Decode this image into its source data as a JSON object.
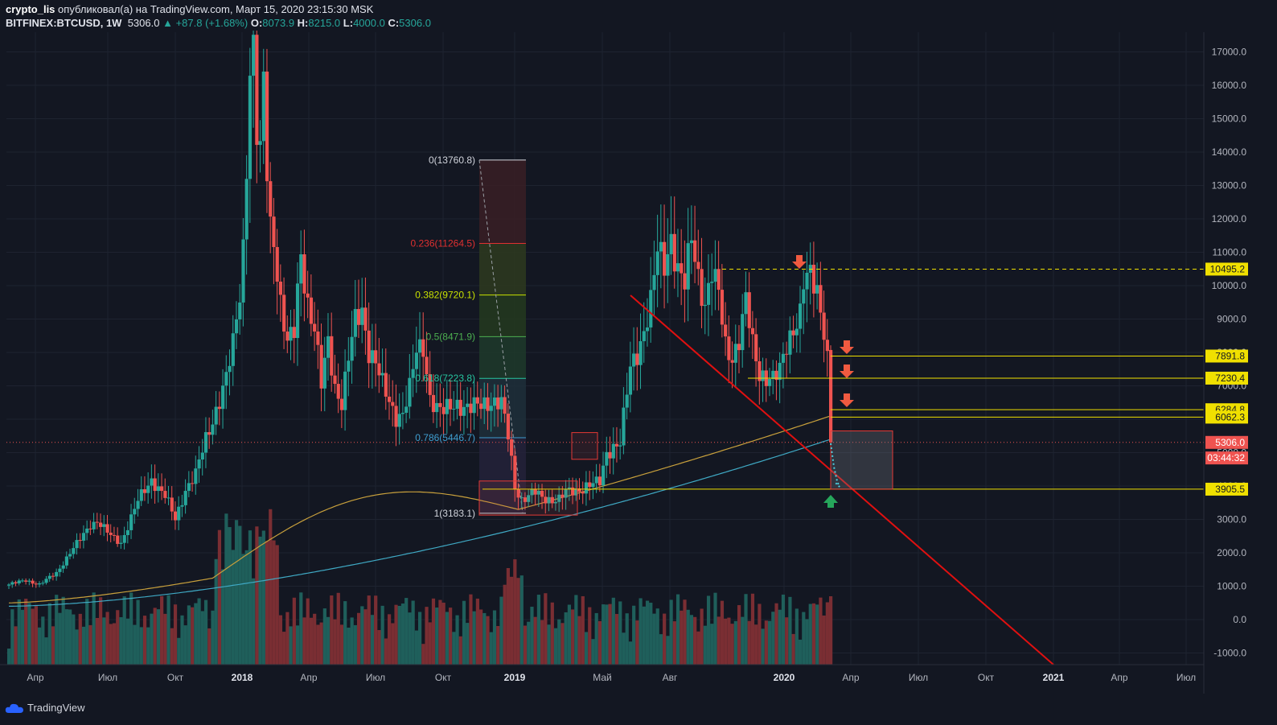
{
  "header": {
    "author": "crypto_lis",
    "published": "опубликовал(а) на TradingView.com, Март 15, 2020 23:15:30 MSK",
    "symbol": "BITFINEX:BTCUSD, 1W",
    "price": "5306.0",
    "change": "+87.8 (+1.68%)",
    "o_label": "O:",
    "o": "8073.9",
    "h_label": "H:",
    "h": "8215.0",
    "l_label": "L:",
    "l": "4000.0",
    "c_label": "C:",
    "c": "5306.0"
  },
  "footer": {
    "brand": "TradingView"
  },
  "colors": {
    "background": "#131722",
    "up": "#26a69a",
    "down": "#ef5350",
    "ma_long": "#c8a03c",
    "ma_short": "#3fa9c4",
    "level": "#f0e000",
    "trendline": "#e01010"
  },
  "chart_data": {
    "type": "candlestick",
    "title": "",
    "timeframe": "1W",
    "ylim": [
      -1500,
      17800
    ],
    "y_ticks": [
      "17000.0",
      "16000.0",
      "15000.0",
      "14000.0",
      "13000.0",
      "12000.0",
      "11000.0",
      "10000.0",
      "9000.0",
      "8000.0",
      "7000.0",
      "6000.0",
      "5000.0",
      "4000.0",
      "3000.0",
      "2000.0",
      "1000.0",
      "0.0",
      "-1000.0"
    ],
    "x_ticks": [
      "Апр",
      "Июл",
      "Окт",
      "2018",
      "Апр",
      "Июл",
      "Окт",
      "2019",
      "Май",
      "Авг",
      "2020",
      "Апр",
      "Июл",
      "Окт",
      "2021",
      "Апр",
      "Июл"
    ],
    "price_series_approx": [
      {
        "t": "2017-03",
        "close": 1100
      },
      {
        "t": "2017-06",
        "close": 2700
      },
      {
        "t": "2017-08",
        "close": 4300
      },
      {
        "t": "2017-09",
        "close": 3900
      },
      {
        "t": "2017-11",
        "close": 9800
      },
      {
        "t": "2017-12",
        "close": 17000
      },
      {
        "t": "2018-01",
        "close": 11500
      },
      {
        "t": "2018-02",
        "close": 10300
      },
      {
        "t": "2018-04",
        "close": 8800
      },
      {
        "t": "2018-06",
        "close": 6200
      },
      {
        "t": "2018-07",
        "close": 7800
      },
      {
        "t": "2018-10",
        "close": 6500
      },
      {
        "t": "2018-11",
        "close": 4000
      },
      {
        "t": "2018-12",
        "close": 3600
      },
      {
        "t": "2019-03",
        "close": 4050
      },
      {
        "t": "2019-05",
        "close": 8000
      },
      {
        "t": "2019-06",
        "close": 11000
      },
      {
        "t": "2019-07",
        "close": 10500
      },
      {
        "t": "2019-09",
        "close": 8300
      },
      {
        "t": "2019-10",
        "close": 9200
      },
      {
        "t": "2019-12",
        "close": 7200
      },
      {
        "t": "2020-02",
        "close": 9800
      },
      {
        "t": "2020-03",
        "close": 5306
      }
    ],
    "last_ohlc": {
      "open": 8073.9,
      "high": 8215.0,
      "low": 4000.0,
      "close": 5306.0
    },
    "fibonacci": [
      {
        "label": "0(13760.8)",
        "level": 0,
        "price": 13760.8,
        "color": "#d1d4dc"
      },
      {
        "label": "0.236(11264.5)",
        "level": 0.236,
        "price": 11264.5,
        "color": "#e03030"
      },
      {
        "label": "0.382(9720.1)",
        "level": 0.382,
        "price": 9720.1,
        "color": "#c8e000"
      },
      {
        "label": "0.5(8471.9)",
        "level": 0.5,
        "price": 8471.9,
        "color": "#4caf50"
      },
      {
        "label": "0.618(7223.8)",
        "level": 0.618,
        "price": 7223.8,
        "color": "#26c6a0"
      },
      {
        "label": "0.786(5446.7)",
        "level": 0.786,
        "price": 5446.7,
        "color": "#3f9ed0"
      },
      {
        "label": "1(3183.1)",
        "level": 1,
        "price": 3183.1,
        "color": "#d1d4dc"
      }
    ],
    "price_labels": [
      {
        "text": "10495.2",
        "value": 10495.2,
        "kind": "level"
      },
      {
        "text": "7891.8",
        "value": 7891.8,
        "kind": "level"
      },
      {
        "text": "7230.4",
        "value": 7230.4,
        "kind": "level"
      },
      {
        "text": "6284.8",
        "value": 6284.8,
        "kind": "level"
      },
      {
        "text": "6062.3",
        "value": 6062.3,
        "kind": "level"
      },
      {
        "text": "5306.0",
        "value": 5306.0,
        "kind": "last"
      },
      {
        "text": "03:44:32",
        "value": 4840,
        "kind": "countdown"
      },
      {
        "text": "3905.5",
        "value": 3905.5,
        "kind": "level"
      }
    ]
  }
}
